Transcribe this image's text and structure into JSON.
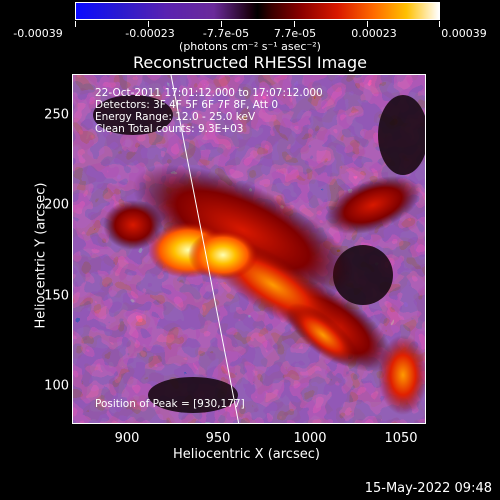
{
  "colorbar": {
    "ticks": [
      "-0.00039",
      "-0.00023",
      "-7.7e-05",
      "7.7e-05",
      "0.00023",
      "0.00039"
    ],
    "units": "(photons cm⁻² s⁻¹ asec⁻²)"
  },
  "title": "Reconstructed RHESSI Image",
  "annotations": {
    "time": "22-Oct-2011 17:01:12.000 to 17:07:12.000",
    "detectors": "Detectors: 3F 4F 5F 6F 7F 8F, Att 0",
    "energy": "Energy Range: 12.0 - 25.0 keV",
    "clean": "Clean    Total counts: 9.3E+03",
    "peak": "Position of Peak = [930,177]"
  },
  "axes": {
    "xlabel": "Heliocentric X (arcsec)",
    "ylabel": "Heliocentric Y (arcsec)",
    "xticks": [
      "900",
      "950",
      "1000",
      "1050"
    ],
    "yticks": [
      "250",
      "200",
      "150",
      "100"
    ]
  },
  "timestamp": "15-May-2022 09:48",
  "colors": {
    "background": "#000000",
    "text": "#ffffff"
  }
}
